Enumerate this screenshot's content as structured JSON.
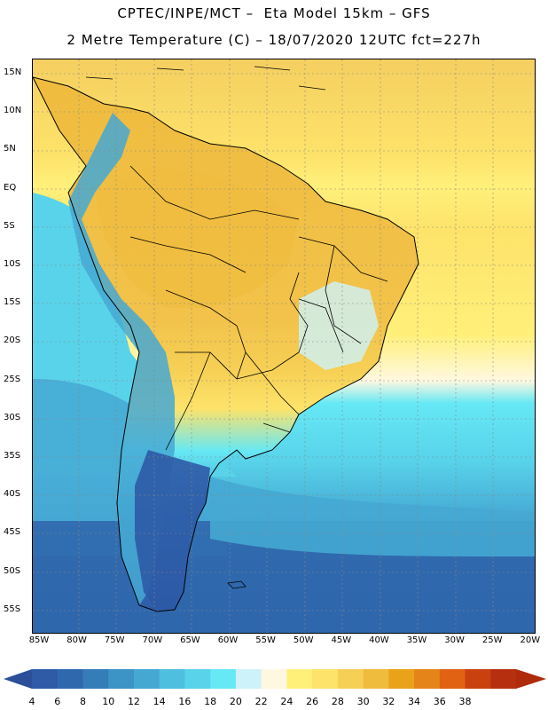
{
  "header": {
    "title_line1": "CPTEC/INPE/MCT –  Eta Model 15km – GFS",
    "title_line2": "2 Metre Temperature (C) – 18/07/2020 12UTC fct=227h"
  },
  "map": {
    "lat_labels": [
      "15N",
      "10N",
      "5N",
      "EQ",
      "5S",
      "10S",
      "15S",
      "20S",
      "25S",
      "30S",
      "35S",
      "40S",
      "45S",
      "50S",
      "55S"
    ],
    "lon_labels": [
      "85W",
      "80W",
      "75W",
      "70W",
      "65W",
      "60W",
      "55W",
      "50W",
      "45W",
      "40W",
      "35W",
      "30W",
      "25W",
      "20W"
    ],
    "lat_range": [
      15,
      -56
    ],
    "lon_range": [
      -86,
      -20
    ]
  },
  "colorbar": {
    "labels": [
      "4",
      "6",
      "8",
      "10",
      "12",
      "14",
      "16",
      "18",
      "20",
      "22",
      "24",
      "26",
      "28",
      "30",
      "32",
      "34",
      "36",
      "38"
    ],
    "colors": [
      "#2e5aa6",
      "#3068ad",
      "#357db8",
      "#3b93c6",
      "#45a8d3",
      "#4fbfe0",
      "#58d3ea",
      "#66e8f5",
      "#cdf2fa",
      "#fff8e0",
      "#fff07a",
      "#fde36a",
      "#f6d055",
      "#efbc3e",
      "#eaa21a",
      "#e58519",
      "#e06212",
      "#c9410e",
      "#b63010"
    ],
    "under_color": "#2b4f98",
    "over_color": "#b02a0c"
  }
}
